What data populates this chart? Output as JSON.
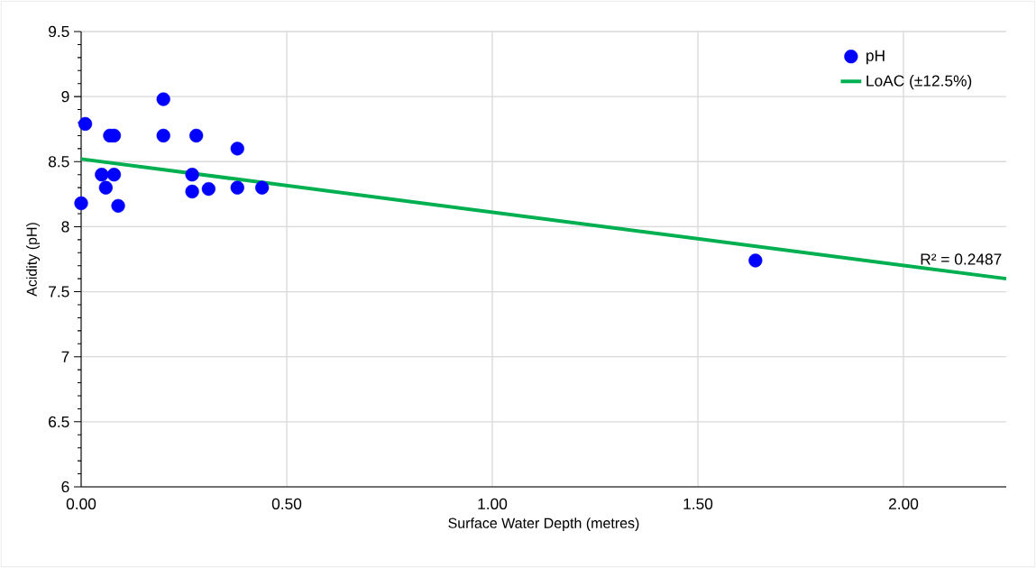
{
  "chart_data": {
    "type": "scatter",
    "xlabel": "Surface Water Depth (metres)",
    "ylabel": "Acidity (pH)",
    "xlim": [
      0,
      2.25
    ],
    "ylim": [
      6,
      9.5
    ],
    "xticks": [
      {
        "value": 0,
        "label": "0.00"
      },
      {
        "value": 0.5,
        "label": "0.50"
      },
      {
        "value": 1,
        "label": "1.00"
      },
      {
        "value": 1.5,
        "label": "1.50"
      },
      {
        "value": 2,
        "label": "2.00"
      }
    ],
    "yticks": [
      6,
      6.5,
      7,
      7.5,
      8,
      8.5,
      9,
      9.5
    ],
    "grid": true,
    "legend": "top right",
    "series": [
      {
        "name": "pH",
        "marker": "circle",
        "color": "#0000ff",
        "x": [
          0,
          0.01,
          0.05,
          0.08,
          0.06,
          0.07,
          0.08,
          0.09,
          0.2,
          0.2,
          0.28,
          0.27,
          0.27,
          0.31,
          0.38,
          0.38,
          0.44,
          1.64
        ],
        "values": [
          8.18,
          8.79,
          8.4,
          8.4,
          8.3,
          8.7,
          8.7,
          8.16,
          8.98,
          8.7,
          8.7,
          8.4,
          8.27,
          8.29,
          8.6,
          8.3,
          8.3,
          7.74
        ]
      },
      {
        "name": "LoAC (±12.5%)",
        "type": "line",
        "marker": "none",
        "color": "#00b050",
        "x": [
          0,
          2.25
        ],
        "values": [
          8.52,
          7.6
        ]
      }
    ],
    "annotations": [
      "R² = 0.2487"
    ]
  }
}
